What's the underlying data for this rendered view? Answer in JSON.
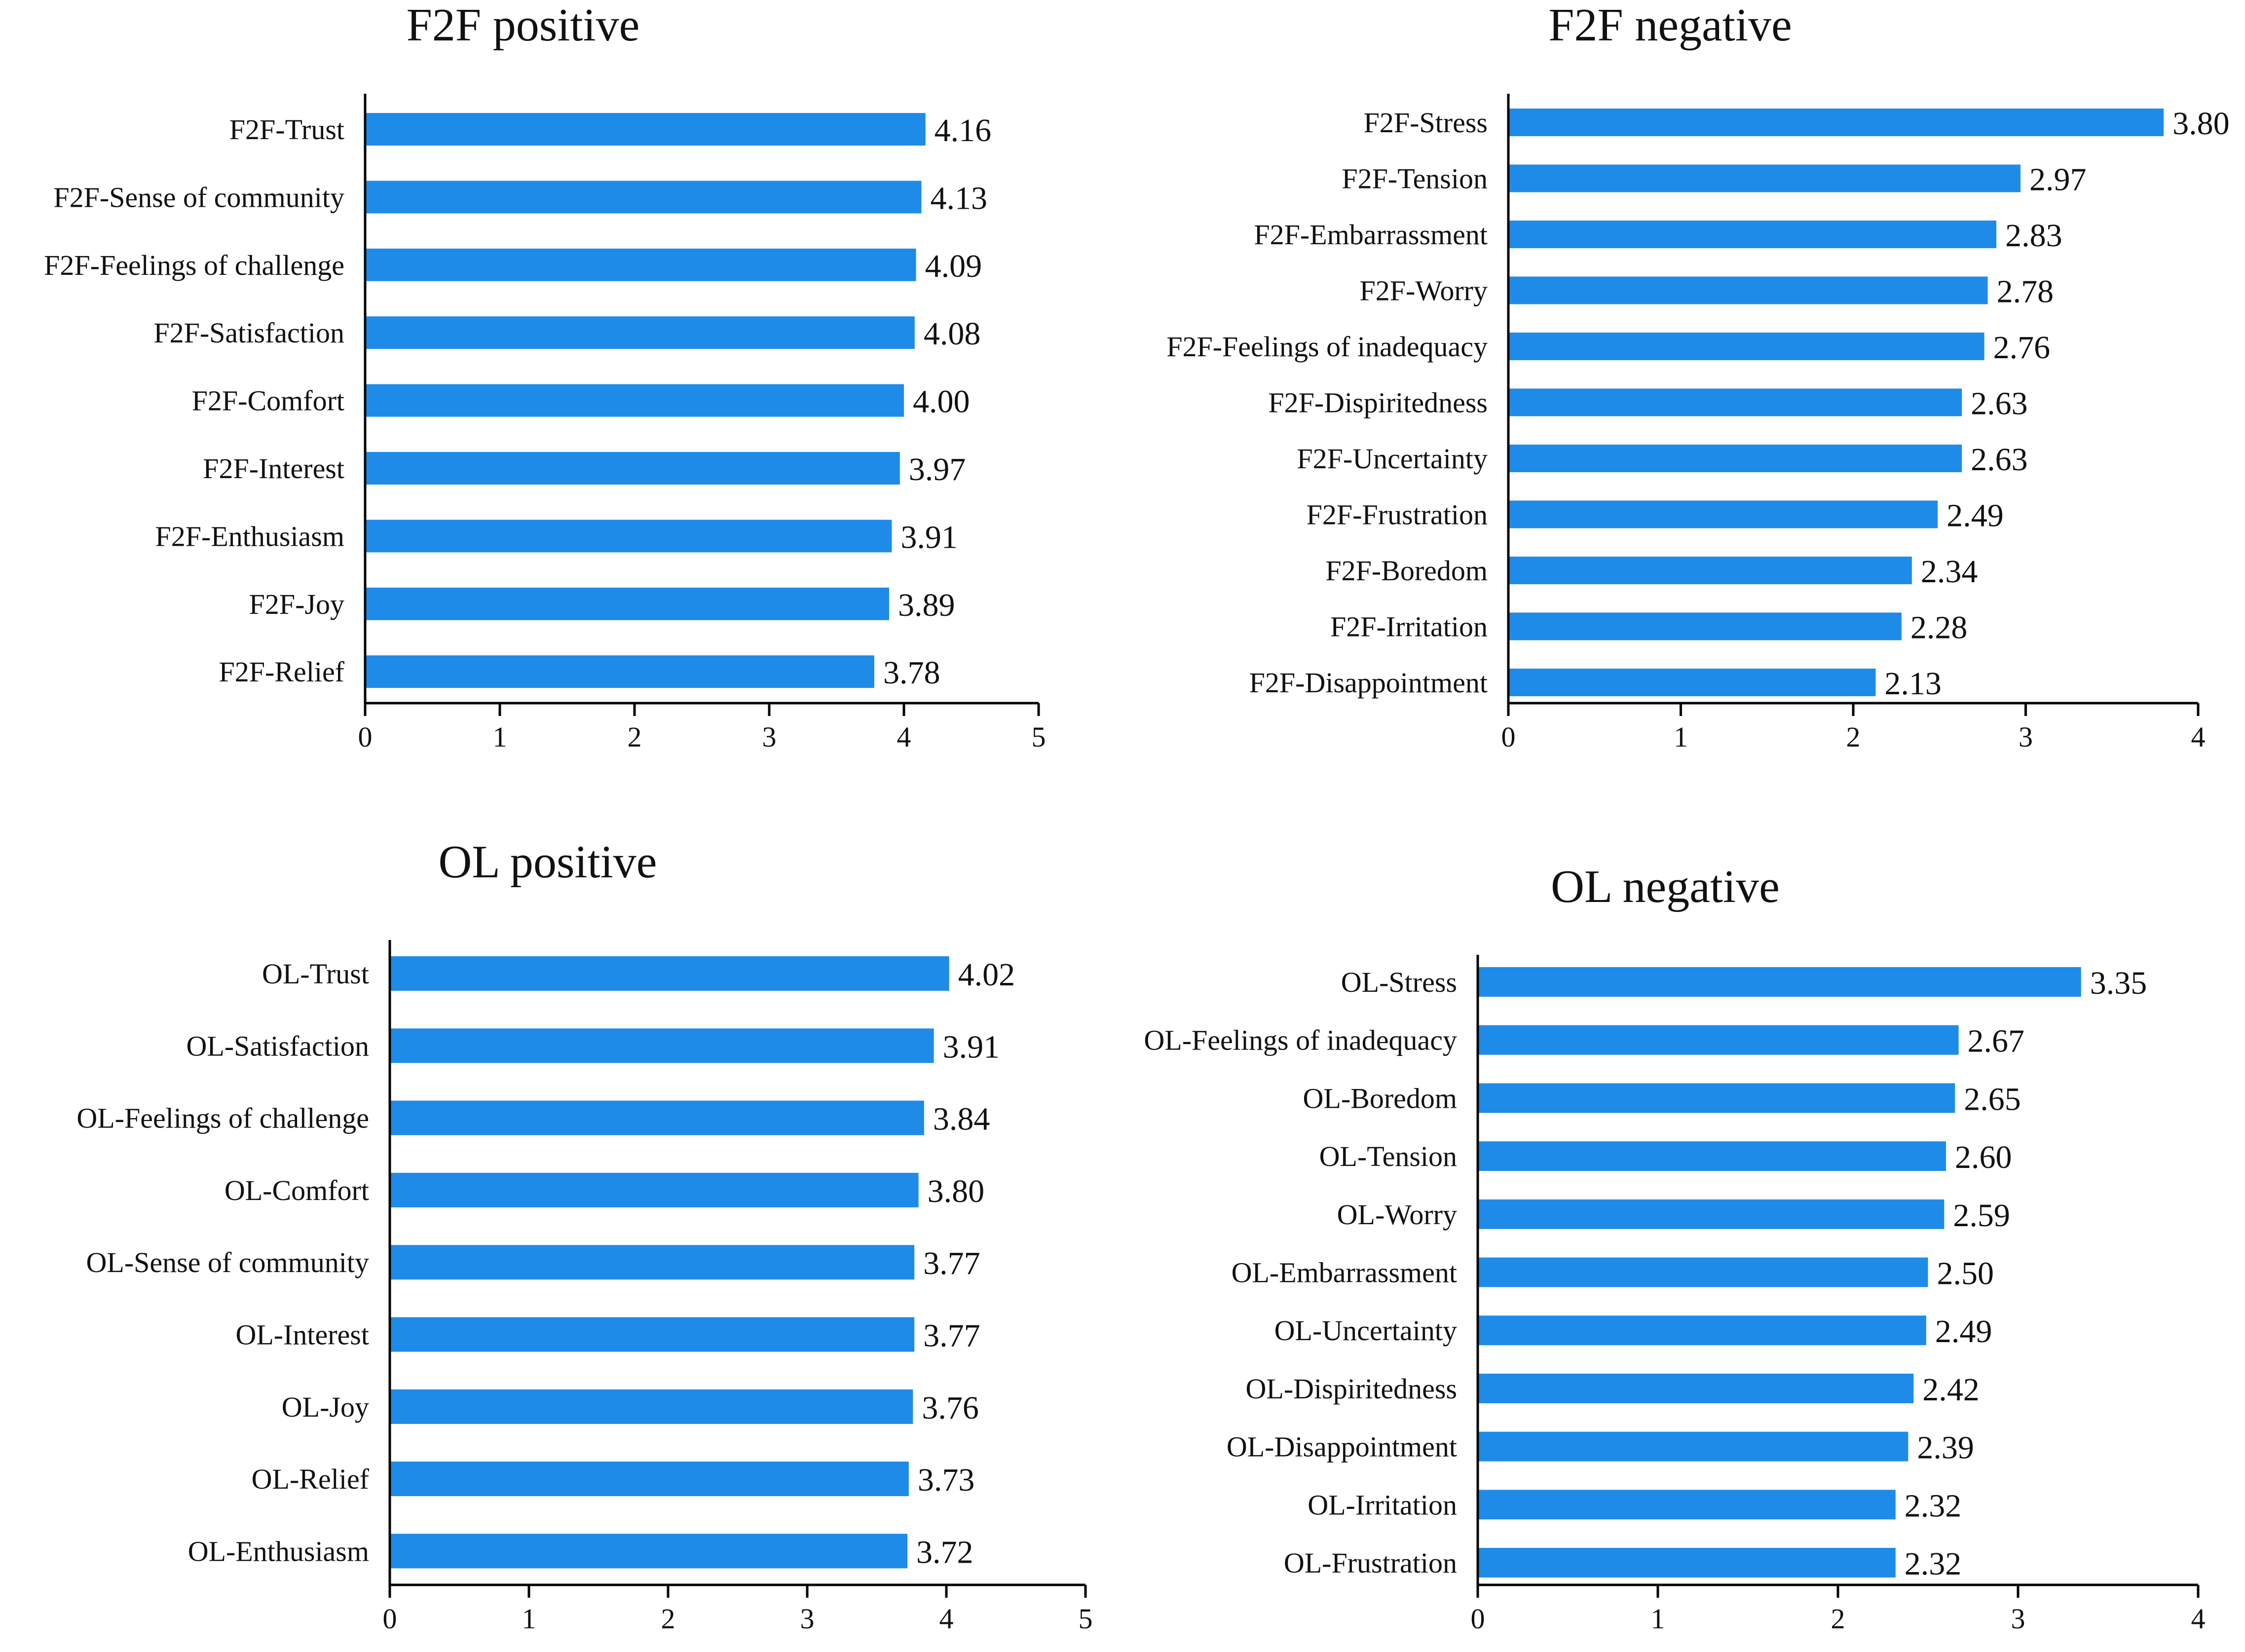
{
  "chart_data": [
    {
      "type": "bar",
      "orientation": "horizontal",
      "title": "F2F positive",
      "categories": [
        "F2F-Trust",
        "F2F-Sense of community",
        "F2F-Feelings of challenge",
        "F2F-Satisfaction",
        "F2F-Comfort",
        "F2F-Interest",
        "F2F-Enthusiasm",
        "F2F-Joy",
        "F2F-Relief"
      ],
      "values": [
        4.16,
        4.13,
        4.09,
        4.08,
        4.0,
        3.97,
        3.91,
        3.89,
        3.78
      ],
      "value_labels": [
        "4.16",
        "4.13",
        "4.09",
        "4.08",
        "4.00",
        "3.97",
        "3.91",
        "3.89",
        "3.78"
      ],
      "xlim": [
        0,
        5
      ],
      "xticks": [
        "0",
        "1",
        "2",
        "3",
        "4",
        "5"
      ],
      "bar_color": "#1f8be8",
      "grid": false
    },
    {
      "type": "bar",
      "orientation": "horizontal",
      "title": "F2F negative",
      "categories": [
        "F2F-Stress",
        "F2F-Tension",
        "F2F-Embarrassment",
        "F2F-Worry",
        "F2F-Feelings of inadequacy",
        "F2F-Dispiritedness",
        "F2F-Uncertainty",
        "F2F-Frustration",
        "F2F-Boredom",
        "F2F-Irritation",
        "F2F-Disappointment"
      ],
      "values": [
        3.8,
        2.97,
        2.83,
        2.78,
        2.76,
        2.63,
        2.63,
        2.49,
        2.34,
        2.28,
        2.13
      ],
      "value_labels": [
        "3.80",
        "2.97",
        "2.83",
        "2.78",
        "2.76",
        "2.63",
        "2.63",
        "2.49",
        "2.34",
        "2.28",
        "2.13"
      ],
      "xlim": [
        0,
        4
      ],
      "xticks": [
        "0",
        "1",
        "2",
        "3",
        "4"
      ],
      "bar_color": "#1f8be8",
      "grid": false
    },
    {
      "type": "bar",
      "orientation": "horizontal",
      "title": "OL positive",
      "categories": [
        "OL-Trust",
        "OL-Satisfaction",
        "OL-Feelings of challenge",
        "OL-Comfort",
        "OL-Sense of community",
        "OL-Interest",
        "OL-Joy",
        "OL-Relief",
        "OL-Enthusiasm"
      ],
      "values": [
        4.02,
        3.91,
        3.84,
        3.8,
        3.77,
        3.77,
        3.76,
        3.73,
        3.72
      ],
      "value_labels": [
        "4.02",
        "3.91",
        "3.84",
        "3.80",
        "3.77",
        "3.77",
        "3.76",
        "3.73",
        "3.72"
      ],
      "xlim": [
        0,
        5
      ],
      "xticks": [
        "0",
        "1",
        "2",
        "3",
        "4",
        "5"
      ],
      "bar_color": "#1f8be8",
      "grid": false
    },
    {
      "type": "bar",
      "orientation": "horizontal",
      "title": "OL negative",
      "categories": [
        "OL-Stress",
        "OL-Feelings of inadequacy",
        "OL-Boredom",
        "OL-Tension",
        "OL-Worry",
        "OL-Embarrassment",
        "OL-Uncertainty",
        "OL-Dispiritedness",
        "OL-Disappointment",
        "OL-Irritation",
        "OL-Frustration"
      ],
      "values": [
        3.35,
        2.67,
        2.65,
        2.6,
        2.59,
        2.5,
        2.49,
        2.42,
        2.39,
        2.32,
        2.32
      ],
      "value_labels": [
        "3.35",
        "2.67",
        "2.65",
        "2.60",
        "2.59",
        "2.50",
        "2.49",
        "2.42",
        "2.39",
        "2.32",
        "2.32"
      ],
      "xlim": [
        0,
        4
      ],
      "xticks": [
        "0",
        "1",
        "2",
        "3",
        "4"
      ],
      "bar_color": "#1f8be8",
      "grid": false
    }
  ]
}
